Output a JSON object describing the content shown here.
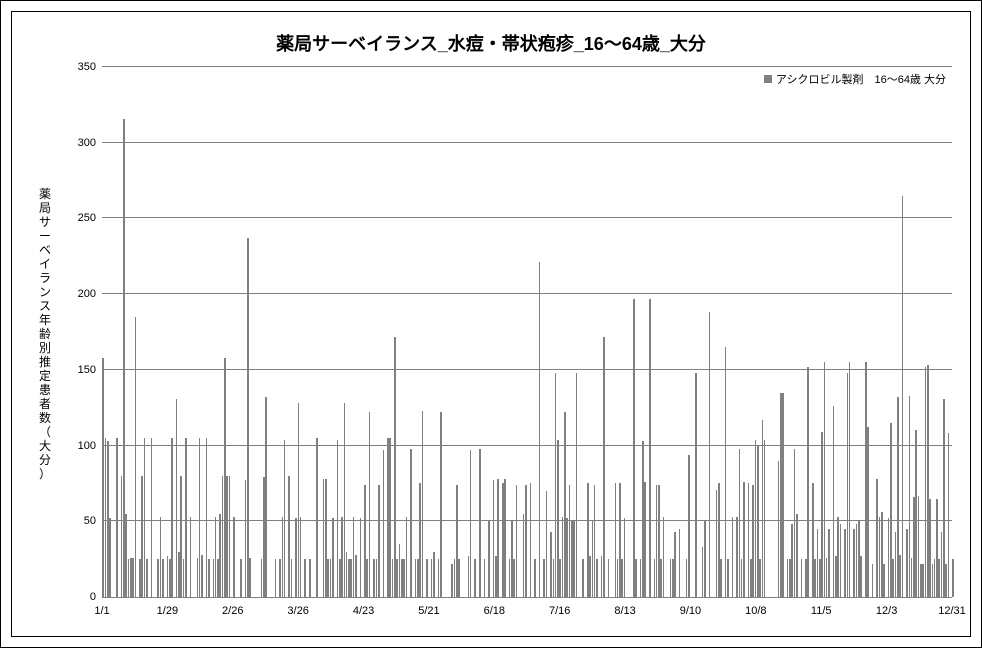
{
  "chart": {
    "type": "bar",
    "title": "薬局サーベイランス_水痘・帯状疱疹_16～64歳_大分",
    "title_fontsize": 18,
    "title_weight": "bold",
    "y_axis_label": "薬局サーベイランス年齢別推定患者数（大分）",
    "legend_label": "アシクロビル製剤　16～64歳 大分",
    "background_color": "#ffffff",
    "frame_color": "#000000",
    "grid_color": "#808080",
    "bar_color": "#808080",
    "bar_width_ratio": 0.7,
    "ylim": [
      0,
      350
    ],
    "ytick_step": 50,
    "y_ticks": [
      0,
      50,
      100,
      150,
      200,
      250,
      300,
      350
    ],
    "x_tick_labels": [
      "1/1",
      "1/29",
      "2/26",
      "3/26",
      "4/23",
      "5/21",
      "6/18",
      "7/16",
      "8/13",
      "9/10",
      "10/8",
      "11/5",
      "12/3",
      "12/31"
    ],
    "x_tick_step_days": 28,
    "label_fontsize": 11,
    "values": [
      158,
      105,
      103,
      52,
      0,
      0,
      105,
      0,
      80,
      316,
      55,
      25,
      26,
      26,
      185,
      0,
      25,
      80,
      105,
      25,
      0,
      105,
      0,
      0,
      25,
      53,
      25,
      0,
      27,
      25,
      105,
      0,
      131,
      30,
      80,
      25,
      105,
      0,
      53,
      0,
      0,
      26,
      105,
      28,
      0,
      105,
      25,
      0,
      25,
      53,
      25,
      55,
      80,
      158,
      80,
      80,
      0,
      53,
      0,
      0,
      25,
      0,
      77,
      237,
      26,
      0,
      0,
      0,
      0,
      25,
      79,
      132,
      0,
      0,
      0,
      25,
      0,
      25,
      53,
      104,
      0,
      80,
      25,
      0,
      52,
      128,
      53,
      0,
      25,
      0,
      25,
      0,
      0,
      105,
      0,
      0,
      78,
      78,
      25,
      25,
      52,
      0,
      104,
      25,
      53,
      128,
      30,
      25,
      25,
      53,
      28,
      0,
      52,
      0,
      74,
      25,
      122,
      0,
      25,
      25,
      74,
      0,
      97,
      0,
      105,
      105,
      25,
      172,
      25,
      35,
      25,
      25,
      53,
      0,
      98,
      0,
      25,
      25,
      75,
      123,
      0,
      25,
      0,
      25,
      30,
      0,
      25,
      122,
      0,
      0,
      0,
      0,
      22,
      25,
      74,
      25,
      0,
      0,
      0,
      27,
      97,
      0,
      25,
      0,
      98,
      0,
      25,
      0,
      50,
      0,
      77,
      27,
      78,
      0,
      75,
      78,
      0,
      25,
      50,
      25,
      74,
      0,
      0,
      55,
      74,
      0,
      75,
      0,
      25,
      0,
      221,
      0,
      25,
      70,
      0,
      43,
      25,
      148,
      104,
      25,
      53,
      122,
      52,
      74,
      50,
      50,
      148,
      0,
      0,
      25,
      0,
      75,
      27,
      50,
      74,
      25,
      0,
      27,
      172,
      0,
      25,
      0,
      0,
      75,
      25,
      75,
      25,
      52,
      0,
      0,
      0,
      197,
      25,
      0,
      25,
      103,
      76,
      0,
      197,
      0,
      25,
      74,
      74,
      25,
      53,
      0,
      0,
      25,
      25,
      43,
      0,
      45,
      0,
      0,
      25,
      94,
      0,
      0,
      148,
      0,
      0,
      33,
      50,
      0,
      188,
      0,
      0,
      71,
      75,
      25,
      0,
      165,
      25,
      0,
      53,
      0,
      53,
      98,
      25,
      76,
      0,
      75,
      25,
      74,
      104,
      100,
      25,
      117,
      104,
      0,
      0,
      0,
      0,
      0,
      90,
      135,
      135,
      0,
      25,
      25,
      48,
      98,
      55,
      0,
      25,
      0,
      25,
      152,
      0,
      75,
      25,
      45,
      25,
      109,
      155,
      26,
      45,
      0,
      126,
      27,
      53,
      48,
      0,
      45,
      148,
      155,
      0,
      45,
      48,
      50,
      27,
      0,
      155,
      112,
      0,
      22,
      0,
      78,
      53,
      56,
      22,
      0,
      52,
      115,
      25,
      43,
      132,
      28,
      265,
      0,
      45,
      133,
      26,
      66,
      110,
      67,
      22,
      22,
      152,
      153,
      65,
      22,
      25,
      65,
      25,
      43,
      131,
      22,
      108,
      0,
      25
    ]
  }
}
